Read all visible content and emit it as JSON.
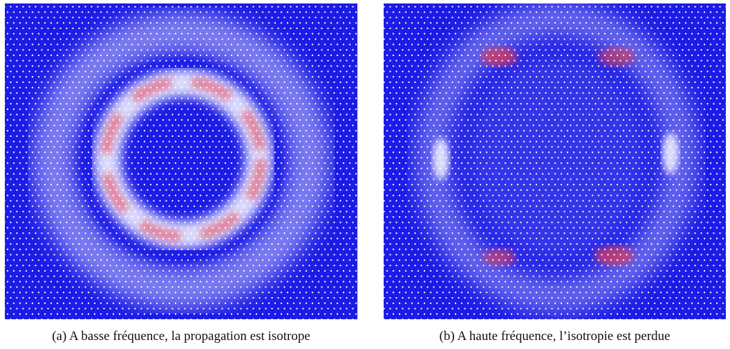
{
  "figures": [
    {
      "caption": "(a) A basse fréquence, la propagation est isotrope"
    },
    {
      "caption": "(b) A haute fréquence, l’isotropie est perdue"
    }
  ]
}
